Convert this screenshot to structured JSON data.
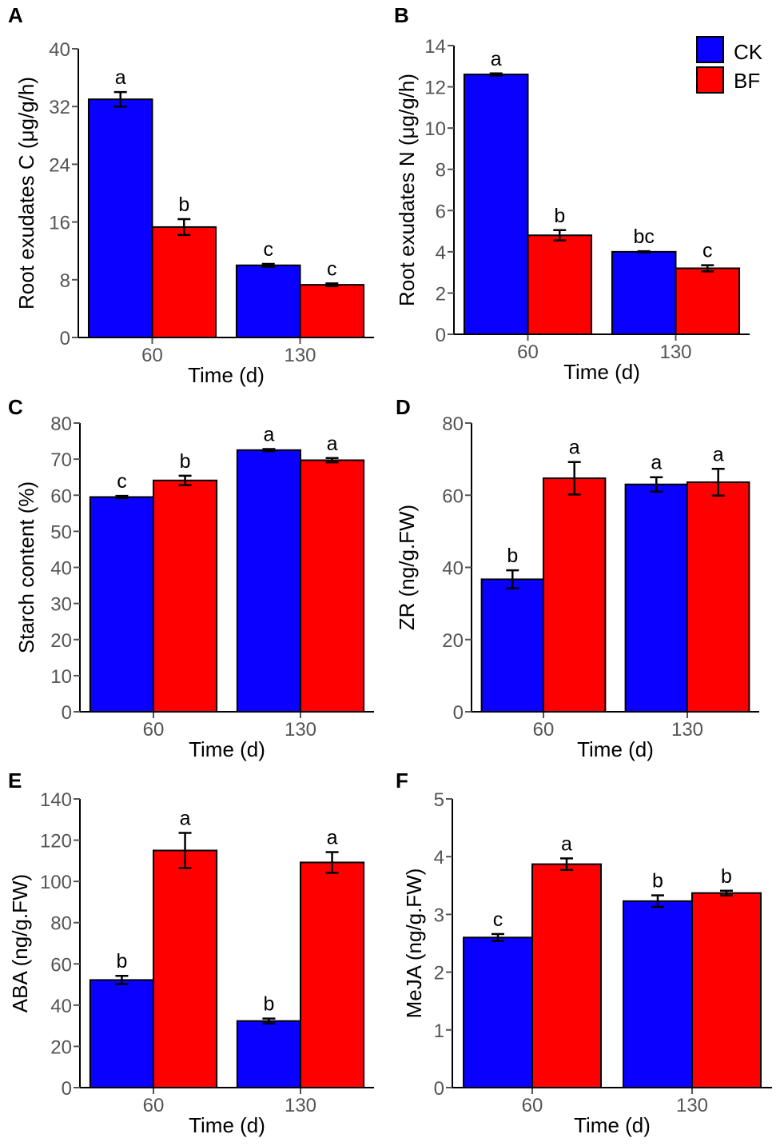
{
  "series_names": [
    "CK",
    "BF"
  ],
  "colors": {
    "CK": "#0a00ff",
    "BF": "#ff0000"
  },
  "legend": {
    "labels": [
      "CK",
      "BF"
    ],
    "position": "top-right"
  },
  "chart_data": [
    {
      "panel": "A",
      "type": "bar",
      "ylabel": "Root exudates C (μg/g/h)",
      "xlabel": "Time (d)",
      "categories": [
        "60",
        "130"
      ],
      "ylim": [
        0,
        40
      ],
      "yticks": [
        0,
        8,
        16,
        24,
        32,
        40
      ],
      "series": [
        {
          "name": "CK",
          "values": [
            33,
            10
          ],
          "errors": [
            1.0,
            0.2
          ],
          "labels": [
            "a",
            "c"
          ]
        },
        {
          "name": "BF",
          "values": [
            15.3,
            7.3
          ],
          "errors": [
            1.1,
            0.2
          ],
          "labels": [
            "b",
            "c"
          ]
        }
      ]
    },
    {
      "panel": "B",
      "type": "bar",
      "ylabel": "Root exudates N (μg/g/h)",
      "xlabel": "Time (d)",
      "categories": [
        "60",
        "130"
      ],
      "ylim": [
        0,
        14
      ],
      "yticks": [
        0,
        2,
        4,
        6,
        8,
        10,
        12,
        14
      ],
      "series": [
        {
          "name": "CK",
          "values": [
            12.6,
            4.0
          ],
          "errors": [
            0.05,
            0.03
          ],
          "labels": [
            "a",
            "bc"
          ]
        },
        {
          "name": "BF",
          "values": [
            4.8,
            3.2
          ],
          "errors": [
            0.25,
            0.15
          ],
          "labels": [
            "b",
            "c"
          ]
        }
      ]
    },
    {
      "panel": "C",
      "type": "bar",
      "ylabel": "Starch content (%)",
      "xlabel": "Time (d)",
      "categories": [
        "60",
        "130"
      ],
      "ylim": [
        0,
        80
      ],
      "yticks": [
        0,
        10,
        20,
        30,
        40,
        50,
        60,
        70,
        80
      ],
      "series": [
        {
          "name": "CK",
          "values": [
            59.5,
            72.5
          ],
          "errors": [
            0.3,
            0.3
          ],
          "labels": [
            "c",
            "a"
          ]
        },
        {
          "name": "BF",
          "values": [
            64.1,
            69.7
          ],
          "errors": [
            1.3,
            0.6
          ],
          "labels": [
            "b",
            "a"
          ]
        }
      ]
    },
    {
      "panel": "D",
      "type": "bar",
      "ylabel": "ZR (ng/g.FW)",
      "xlabel": "Time (d)",
      "categories": [
        "60",
        "130"
      ],
      "ylim": [
        0,
        80
      ],
      "yticks": [
        0,
        20,
        40,
        60,
        80
      ],
      "series": [
        {
          "name": "CK",
          "values": [
            36.7,
            63.0
          ],
          "errors": [
            2.5,
            2.0
          ],
          "labels": [
            "b",
            "a"
          ]
        },
        {
          "name": "BF",
          "values": [
            64.7,
            63.6
          ],
          "errors": [
            4.5,
            3.7
          ],
          "labels": [
            "a",
            "a"
          ]
        }
      ]
    },
    {
      "panel": "E",
      "type": "bar",
      "ylabel": "ABA (ng/g.FW)",
      "xlabel": "Time (d)",
      "categories": [
        "60",
        "130"
      ],
      "ylim": [
        0,
        140
      ],
      "yticks": [
        0,
        20,
        40,
        60,
        80,
        100,
        120,
        140
      ],
      "series": [
        {
          "name": "CK",
          "values": [
            52.2,
            32.3
          ],
          "errors": [
            2.0,
            1.2
          ],
          "labels": [
            "b",
            "b"
          ]
        },
        {
          "name": "BF",
          "values": [
            115.0,
            109.2
          ],
          "errors": [
            8.5,
            5.0
          ],
          "labels": [
            "a",
            "a"
          ]
        }
      ]
    },
    {
      "panel": "F",
      "type": "bar",
      "ylabel": "MeJA (ng/g.FW)",
      "xlabel": "Time (d)",
      "categories": [
        "60",
        "130"
      ],
      "ylim": [
        0,
        5
      ],
      "yticks": [
        0,
        1,
        2,
        3,
        4,
        5
      ],
      "series": [
        {
          "name": "CK",
          "values": [
            2.6,
            3.23
          ],
          "errors": [
            0.06,
            0.1
          ],
          "labels": [
            "c",
            "b"
          ]
        },
        {
          "name": "BF",
          "values": [
            3.87,
            3.37
          ],
          "errors": [
            0.1,
            0.04
          ],
          "labels": [
            "a",
            "b"
          ]
        }
      ]
    }
  ]
}
